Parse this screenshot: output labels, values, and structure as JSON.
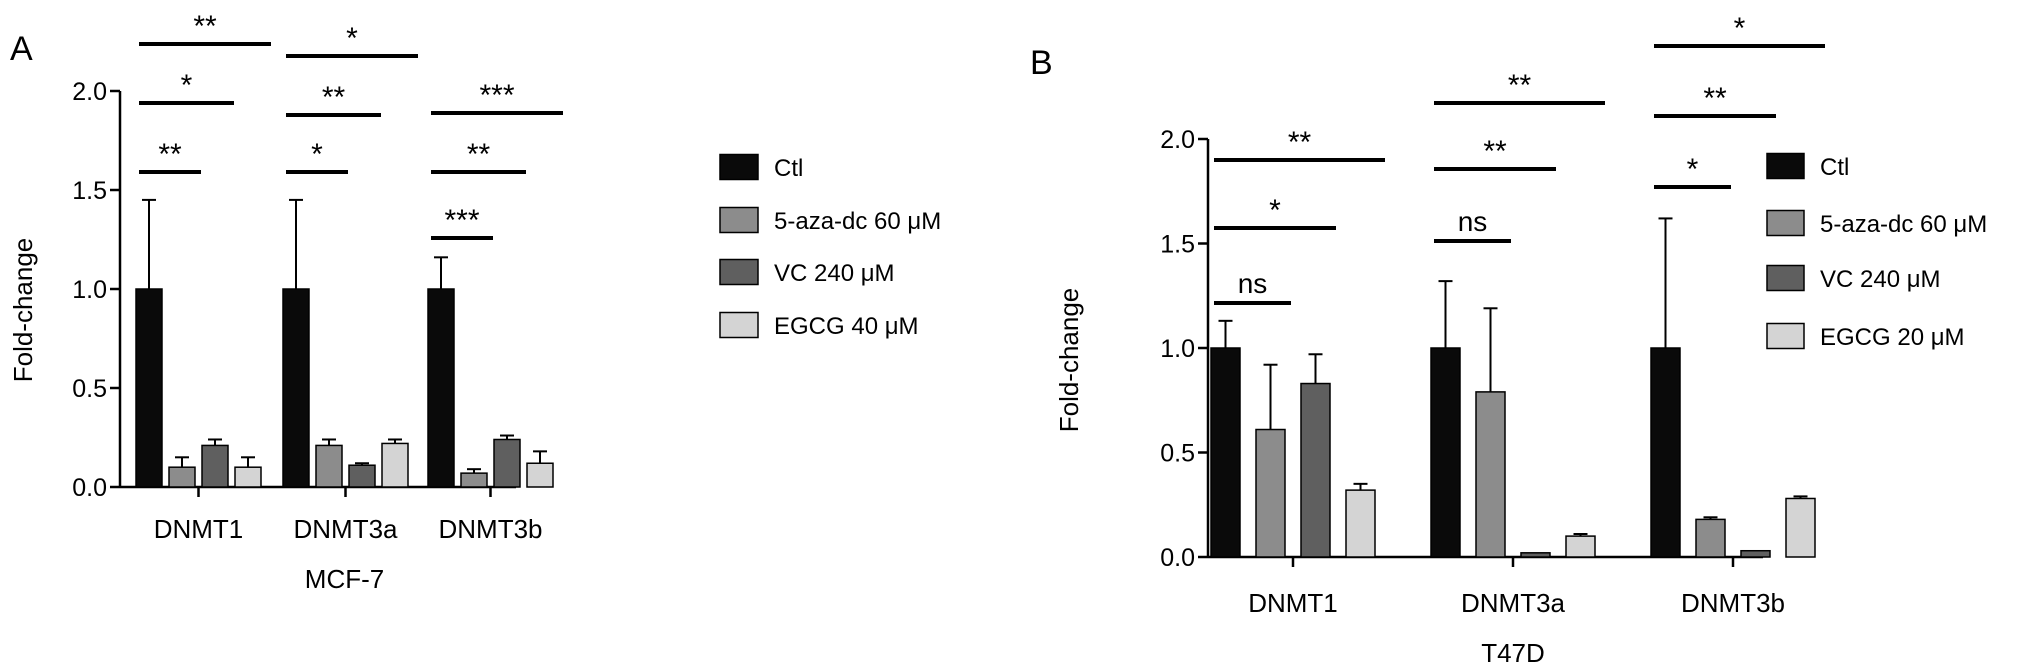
{
  "chart_data": [
    {
      "type": "bar",
      "panel_label": "A",
      "ylabel": "Fold-change",
      "xlabel": "MCF-7",
      "categories": [
        "DNMT1",
        "DNMT3a",
        "DNMT3b"
      ],
      "ylim": [
        0,
        2.0
      ],
      "yticks": [
        "0.0",
        "0.5",
        "1.0",
        "1.5",
        "2.0"
      ],
      "series": [
        {
          "name": "Ctl",
          "color": "#0a0a0a",
          "values": [
            1.0,
            1.0,
            1.0
          ],
          "errors": [
            0.45,
            0.45,
            0.16
          ]
        },
        {
          "name": "5-aza-dc 60 μM",
          "color": "#8c8c8c",
          "values": [
            0.1,
            0.21,
            0.07
          ],
          "errors": [
            0.05,
            0.03,
            0.02
          ]
        },
        {
          "name": "VC 240 μM",
          "color": "#5f5f5f",
          "values": [
            0.21,
            0.11,
            0.24
          ],
          "errors": [
            0.03,
            0.01,
            0.02
          ]
        },
        {
          "name": "EGCG 40 μM",
          "color": "#d4d4d4",
          "values": [
            0.1,
            0.22,
            0.12
          ],
          "errors": [
            0.05,
            0.02,
            0.06
          ]
        }
      ],
      "significance": [
        {
          "category": "DNMT1",
          "label": "**",
          "compare": "5-aza-dc 60 μM"
        },
        {
          "category": "DNMT1",
          "label": "*",
          "compare": "VC 240 μM"
        },
        {
          "category": "DNMT1",
          "label": "**",
          "compare": "EGCG 40 μM"
        },
        {
          "category": "DNMT3a",
          "label": "*",
          "compare": "5-aza-dc 60 μM"
        },
        {
          "category": "DNMT3a",
          "label": "**",
          "compare": "VC 240 μM"
        },
        {
          "category": "DNMT3a",
          "label": "*",
          "compare": "EGCG 40 μM"
        },
        {
          "category": "DNMT3b",
          "label": "***",
          "compare": "5-aza-dc 60 μM"
        },
        {
          "category": "DNMT3b",
          "label": "**",
          "compare": "VC 240 μM"
        },
        {
          "category": "DNMT3b",
          "label": "***",
          "compare": "EGCG 40 μM"
        }
      ],
      "legend": "right"
    },
    {
      "type": "bar",
      "panel_label": "B",
      "ylabel": "Fold-change",
      "xlabel": "T47D",
      "categories": [
        "DNMT1",
        "DNMT3a",
        "DNMT3b"
      ],
      "ylim": [
        0,
        2.0
      ],
      "yticks": [
        "0.0",
        "0.5",
        "1.0",
        "1.5",
        "2.0"
      ],
      "series": [
        {
          "name": "Ctl",
          "color": "#0a0a0a",
          "values": [
            1.0,
            1.0,
            1.0
          ],
          "errors": [
            0.13,
            0.32,
            0.62
          ]
        },
        {
          "name": "5-aza-dc 60 μM",
          "color": "#8c8c8c",
          "values": [
            0.61,
            0.79,
            0.18
          ],
          "errors": [
            0.31,
            0.4,
            0.01
          ]
        },
        {
          "name": "VC 240 μM",
          "color": "#5f5f5f",
          "values": [
            0.83,
            0.02,
            0.03
          ],
          "errors": [
            0.14,
            0.0,
            0.0
          ]
        },
        {
          "name": "EGCG 20 μM",
          "color": "#d4d4d4",
          "values": [
            0.32,
            0.1,
            0.28
          ],
          "errors": [
            0.03,
            0.01,
            0.01
          ]
        }
      ],
      "significance": [
        {
          "category": "DNMT1",
          "label": "ns",
          "compare": "5-aza-dc 60 μM"
        },
        {
          "category": "DNMT1",
          "label": "*",
          "compare": "VC 240 μM"
        },
        {
          "category": "DNMT1",
          "label": "**",
          "compare": "EGCG 20 μM"
        },
        {
          "category": "DNMT3a",
          "label": "ns",
          "compare": "5-aza-dc 60 μM"
        },
        {
          "category": "DNMT3a",
          "label": "**",
          "compare": "VC 240 μM"
        },
        {
          "category": "DNMT3a",
          "label": "**",
          "compare": "EGCG 20 μM"
        },
        {
          "category": "DNMT3b",
          "label": "*",
          "compare": "5-aza-dc 60 μM"
        },
        {
          "category": "DNMT3b",
          "label": "**",
          "compare": "VC 240 μM"
        },
        {
          "category": "DNMT3b",
          "label": "*",
          "compare": "EGCG 20 μM"
        }
      ],
      "legend": "right"
    }
  ]
}
